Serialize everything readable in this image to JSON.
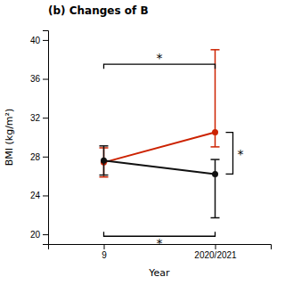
{
  "chart_data": {
    "type": "line",
    "title": "(b) Changes of B",
    "x_label": "Year",
    "y_label": "BMI (kg/m²)",
    "categories": [
      "9",
      "2020/2021"
    ],
    "series": [
      {
        "color": "#cc2200",
        "marker": "circle",
        "line_style": "solid",
        "values": [
          27.4,
          30.5
        ],
        "error_lower": [
          1.5,
          1.5
        ],
        "error_upper": [
          1.5,
          8.5
        ]
      },
      {
        "color": "#111111",
        "marker": "circle",
        "line_style": "solid",
        "values": [
          27.6,
          26.2
        ],
        "error_lower": [
          1.5,
          4.5
        ],
        "error_upper": [
          1.5,
          1.5
        ]
      }
    ],
    "ylim": [
      19,
      41
    ],
    "yticks": [
      20,
      24,
      28,
      32,
      36,
      40
    ],
    "annotations": [
      {
        "text": "*",
        "side": "top",
        "y": 37.5
      },
      {
        "text": "*",
        "side": "right",
        "y_range": [
          26.2,
          30.5
        ]
      },
      {
        "text": "*",
        "side": "bottom",
        "y": 19.8
      }
    ]
  }
}
